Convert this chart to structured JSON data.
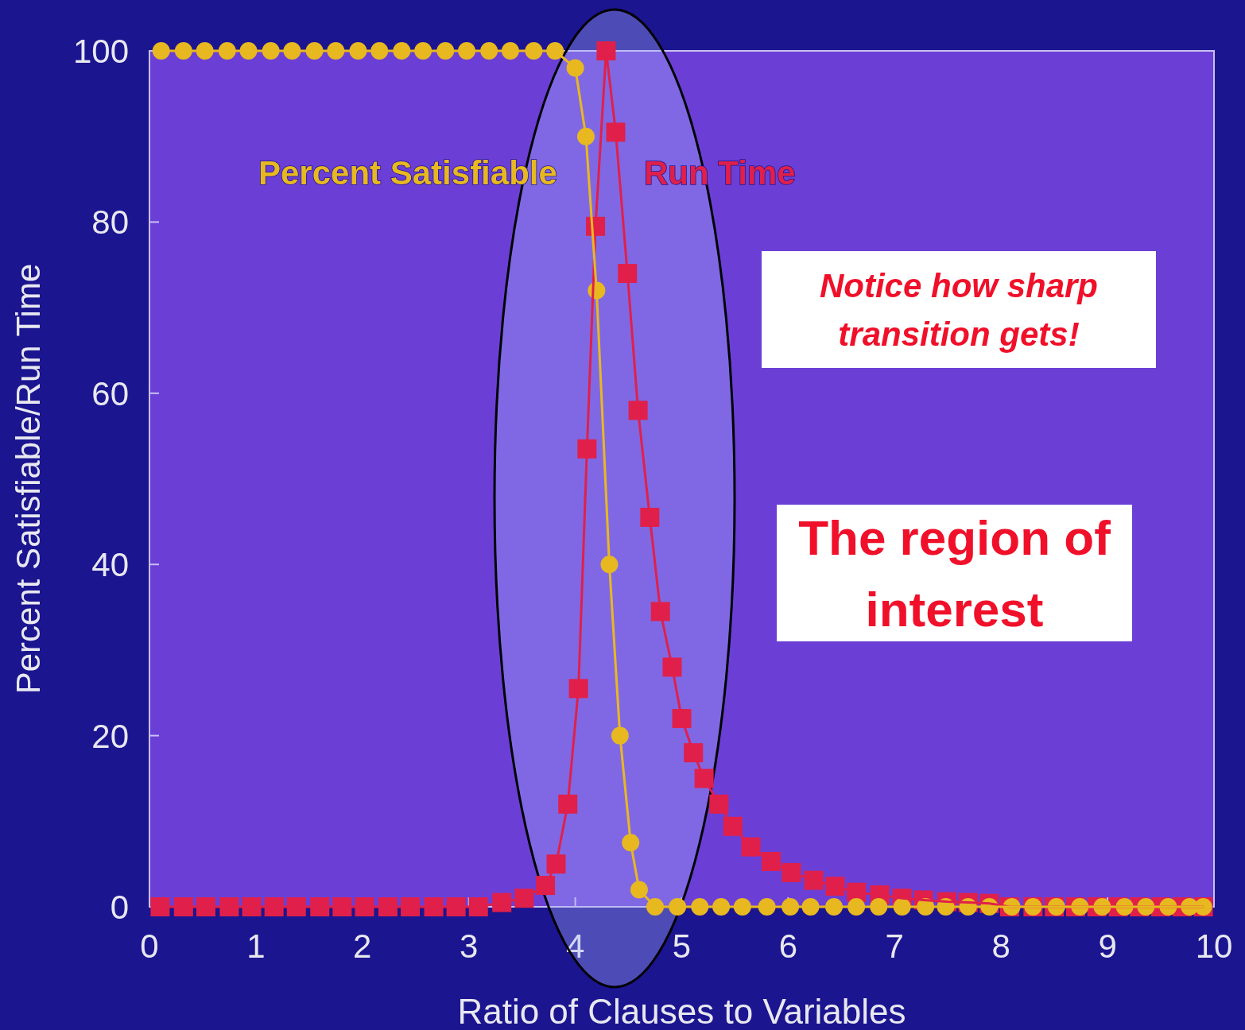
{
  "chart_data": {
    "type": "line",
    "xlabel": "Ratio of Clauses to Variables",
    "ylabel": "Percent Satisfiable/Run Time",
    "xlim": [
      0,
      10
    ],
    "ylim": [
      0,
      100
    ],
    "xticks": [
      0,
      1,
      2,
      3,
      4,
      5,
      6,
      7,
      8,
      9,
      10
    ],
    "yticks": [
      0,
      20,
      40,
      60,
      80,
      100
    ],
    "grid": false,
    "line_style": "solid",
    "annotations": [
      "Notice how sharp transition gets!",
      "The region of interest"
    ],
    "series": [
      {
        "name": "Percent Satisfiable",
        "color": "#e8b820",
        "marker": "circle",
        "x": [
          0.11,
          0.32,
          0.52,
          0.73,
          0.93,
          1.14,
          1.34,
          1.55,
          1.75,
          1.96,
          2.16,
          2.37,
          2.57,
          2.78,
          2.98,
          3.19,
          3.39,
          3.61,
          3.81,
          4.0,
          4.1,
          4.2,
          4.32,
          4.42,
          4.52,
          4.6,
          4.75,
          4.96,
          5.17,
          5.37,
          5.57,
          5.8,
          6.02,
          6.21,
          6.43,
          6.64,
          6.85,
          7.07,
          7.29,
          7.48,
          7.69,
          7.89,
          8.1,
          8.3,
          8.52,
          8.74,
          8.95,
          9.16,
          9.36,
          9.57,
          9.77,
          9.9
        ],
        "values": [
          100,
          100,
          100,
          100,
          100,
          100,
          100,
          100,
          100,
          100,
          100,
          100,
          100,
          100,
          100,
          100,
          100,
          100,
          100,
          98,
          90,
          72,
          40,
          20,
          7.5,
          2,
          0,
          0,
          0,
          0,
          0,
          0,
          0,
          0,
          0,
          0,
          0,
          0,
          0,
          0,
          0,
          0,
          0,
          0,
          0,
          0,
          0,
          0,
          0,
          0,
          0,
          0
        ]
      },
      {
        "name": "Run Time",
        "color": "#e0204a",
        "marker": "square",
        "x": [
          0.1,
          0.32,
          0.53,
          0.75,
          0.96,
          1.17,
          1.38,
          1.6,
          1.81,
          2.02,
          2.24,
          2.45,
          2.67,
          2.88,
          3.09,
          3.31,
          3.52,
          3.72,
          3.82,
          3.93,
          4.03,
          4.11,
          4.19,
          4.29,
          4.38,
          4.49,
          4.59,
          4.7,
          4.8,
          4.91,
          5.0,
          5.11,
          5.21,
          5.35,
          5.48,
          5.65,
          5.84,
          6.03,
          6.24,
          6.44,
          6.64,
          6.86,
          7.07,
          7.27,
          7.49,
          7.69,
          7.89,
          8.08,
          8.3,
          8.5,
          8.7,
          8.9,
          9.1,
          9.3,
          9.5,
          9.7,
          9.9
        ],
        "values": [
          0,
          0,
          0,
          0,
          0,
          0,
          0,
          0,
          0,
          0,
          0,
          0,
          0,
          0,
          0,
          0.5,
          1,
          2.5,
          5,
          12,
          25.5,
          53.5,
          79.5,
          100,
          90.5,
          74,
          58,
          45.5,
          34.5,
          28,
          22,
          18,
          15,
          12,
          9.4,
          7,
          5.3,
          4,
          3.1,
          2.4,
          1.7,
          1.4,
          1,
          0.8,
          0.6,
          0.5,
          0.4,
          0,
          0,
          0,
          0,
          0,
          0,
          0,
          0,
          0,
          0
        ]
      }
    ]
  }
}
